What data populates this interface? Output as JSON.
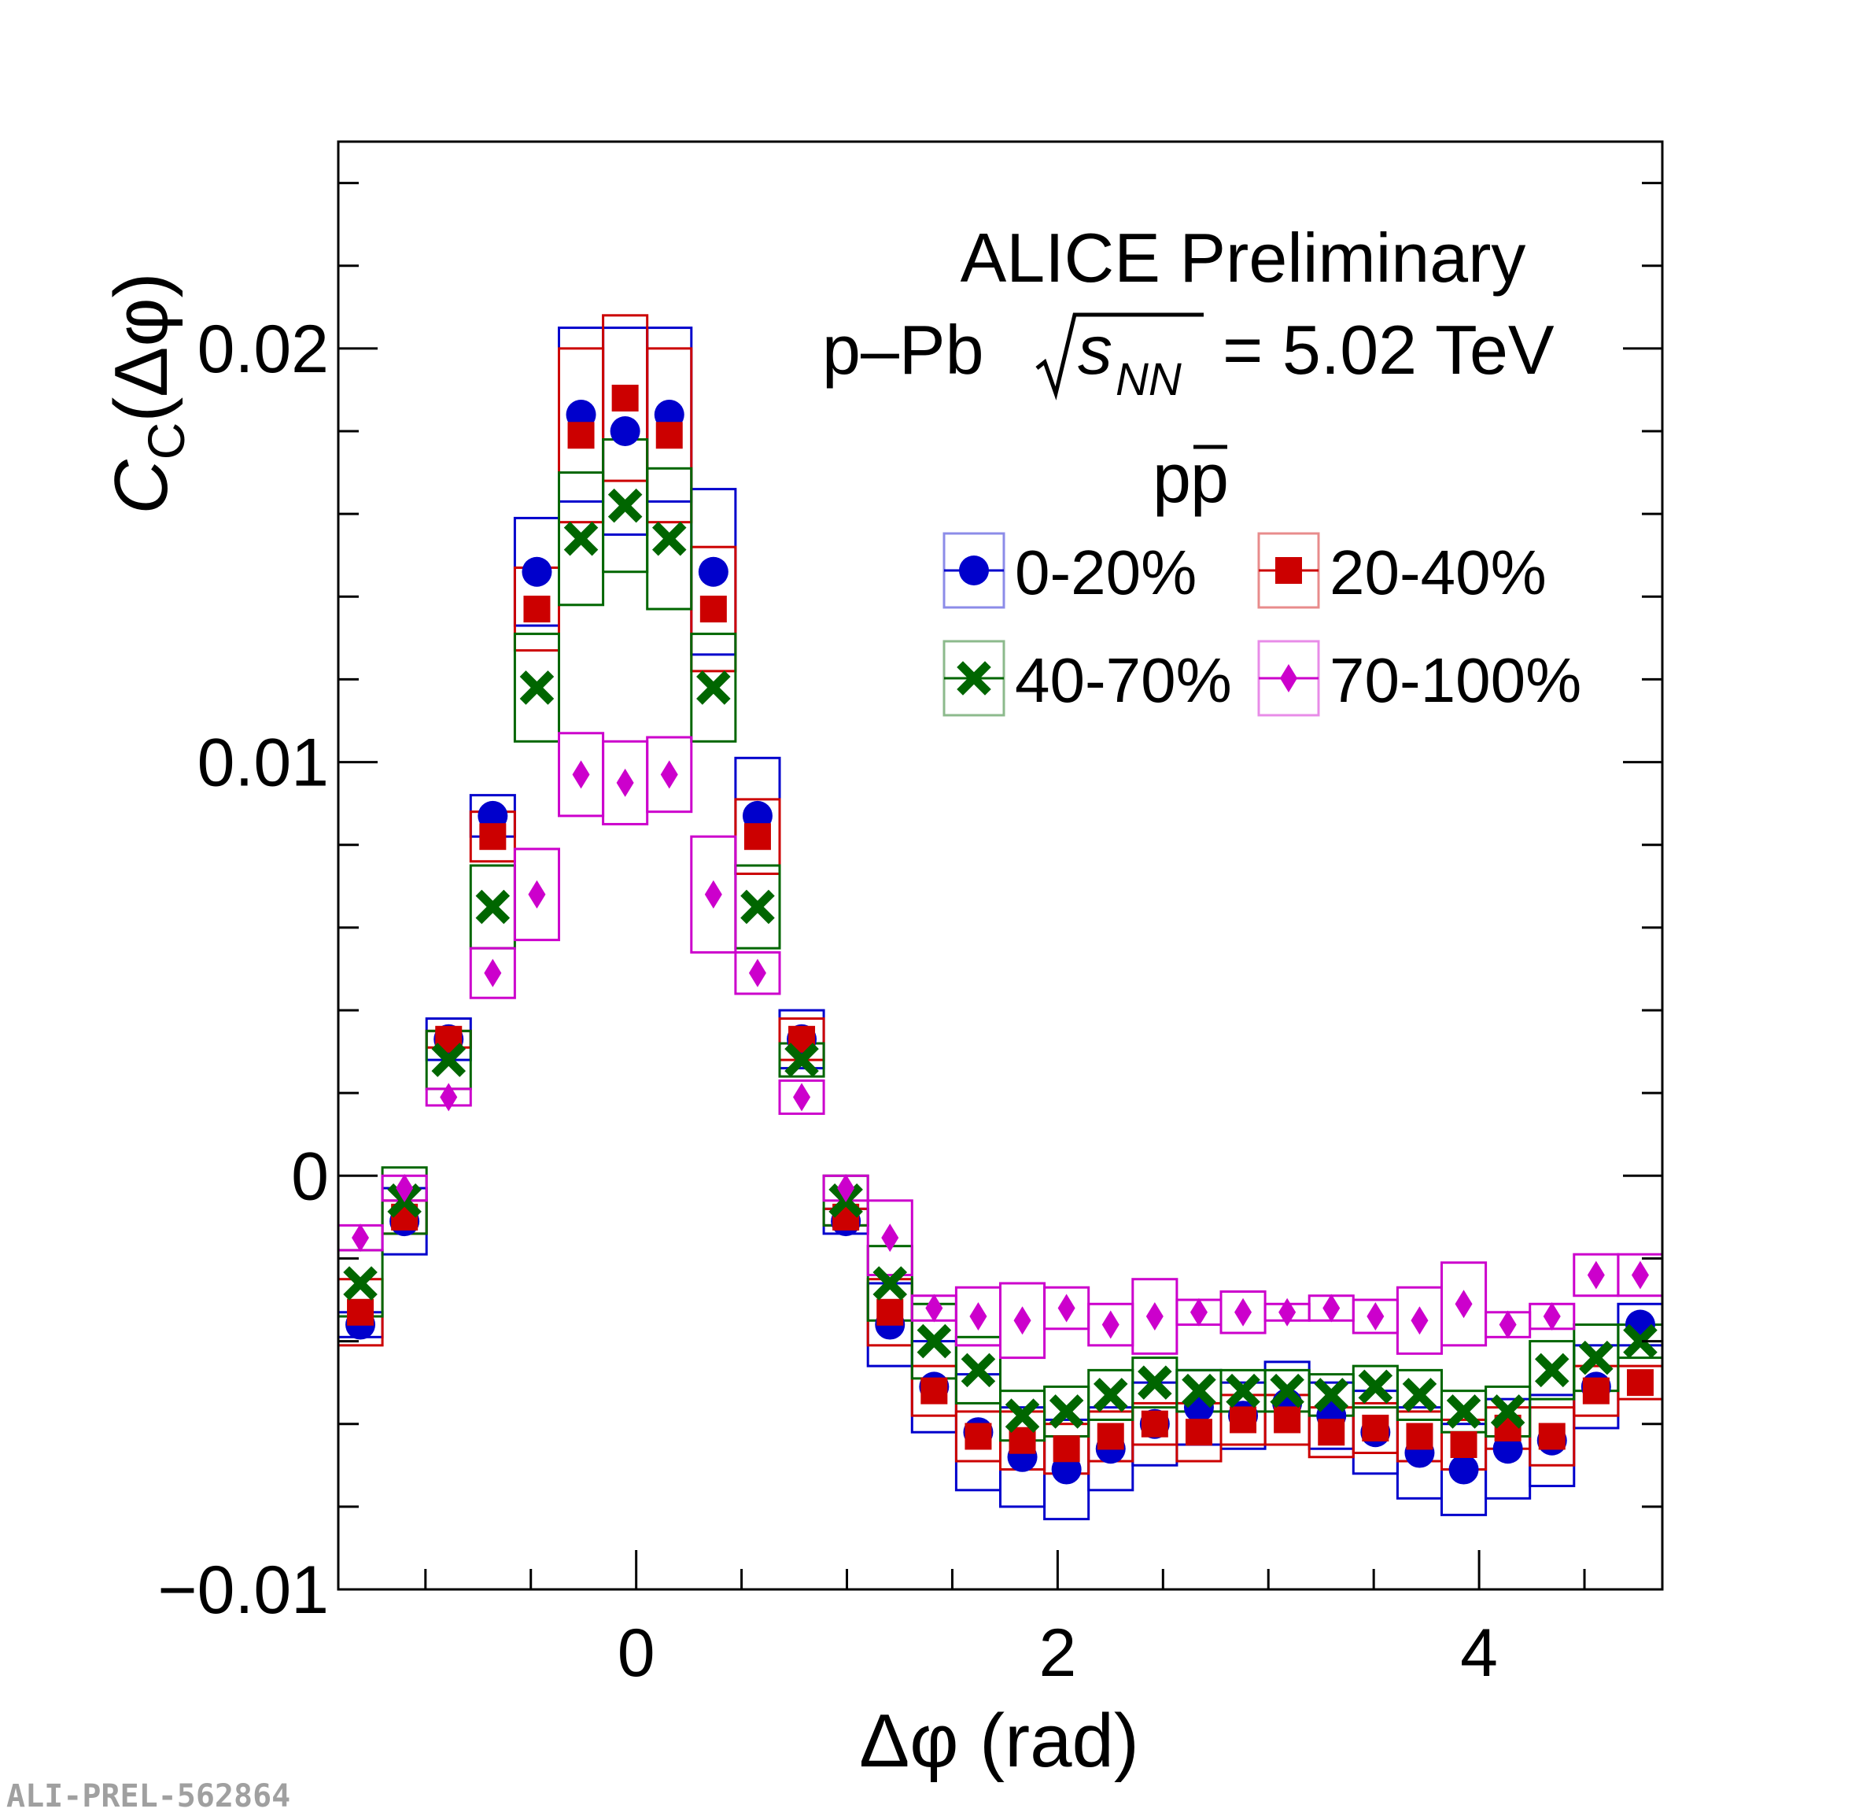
{
  "chart_data": {
    "type": "scatter",
    "xlabel": "Δφ (rad)",
    "ylabel_main": "C",
    "ylabel_sub": "C",
    "ylabel_tail": "(Δφ)",
    "xlim": [
      -1.4137,
      4.8695
    ],
    "ylim": [
      -0.01,
      0.025
    ],
    "x_ticks": [
      0,
      2,
      4
    ],
    "x_tick_labels": [
      "0",
      "2",
      "4"
    ],
    "y_ticks": [
      -0.01,
      0,
      0.01,
      0.02
    ],
    "y_tick_labels": [
      "−0.01",
      "0",
      "0.01",
      "0.02"
    ],
    "x_minor_step": 0.5,
    "y_minor_step": 0.002,
    "grid": false,
    "legend_position": "top-right",
    "annotations": {
      "experiment": "ALICE Preliminary",
      "system_prefix": "p–Pb",
      "energy_var": "s",
      "energy_sub": "NN",
      "energy_value": "= 5.02 TeV",
      "pair_p": "p",
      "pair_pbar": "p",
      "watermark": "ALI-PREL-562864"
    },
    "bin_width": 0.2094,
    "x": [
      -1.309,
      -1.0996,
      -0.8901,
      -0.6807,
      -0.4712,
      -0.2618,
      -0.0524,
      0.1571,
      0.3665,
      0.576,
      0.7854,
      0.9948,
      1.2043,
      1.4137,
      1.6232,
      1.8326,
      2.042,
      2.2515,
      2.4609,
      2.6704,
      2.8798,
      3.0892,
      3.2987,
      3.5081,
      3.7176,
      3.927,
      4.1364,
      4.3459,
      4.5553,
      4.7648
    ],
    "series": [
      {
        "name": "0-20%",
        "color": "#0000cc",
        "marker": "circle",
        "values": [
          -0.0036,
          -0.0011,
          0.0033,
          0.0087,
          0.0146,
          0.0184,
          0.018,
          0.0184,
          0.0146,
          0.0087,
          0.0033,
          -0.0011,
          -0.0036,
          -0.0051,
          -0.0062,
          -0.0068,
          -0.0071,
          -0.0066,
          -0.006,
          -0.0056,
          -0.0058,
          -0.0055,
          -0.0058,
          -0.0062,
          -0.0067,
          -0.0071,
          -0.0066,
          -0.0064,
          -0.0051,
          -0.0036
        ],
        "syst": [
          0.0003,
          0.0008,
          0.0005,
          0.0005,
          0.0013,
          0.0021,
          0.0025,
          0.0021,
          0.002,
          0.0014,
          0.0007,
          0.0003,
          0.001,
          0.0011,
          0.0014,
          0.0012,
          0.0012,
          0.001,
          0.001,
          0.0009,
          0.0008,
          0.001,
          0.0008,
          0.001,
          0.0011,
          0.0011,
          0.0012,
          0.0011,
          0.001,
          0.0005
        ]
      },
      {
        "name": "20-40%",
        "color": "#cc0000",
        "marker": "square",
        "values": [
          -0.0033,
          -0.001,
          0.0033,
          0.0082,
          0.0137,
          0.0179,
          0.0188,
          0.0179,
          0.0137,
          0.0082,
          0.0033,
          -0.001,
          -0.0033,
          -0.0052,
          -0.0063,
          -0.0064,
          -0.0066,
          -0.0063,
          -0.006,
          -0.0062,
          -0.0059,
          -0.0059,
          -0.0062,
          -0.0061,
          -0.0063,
          -0.0065,
          -0.0061,
          -0.0063,
          -0.0052,
          -0.005
        ],
        "syst": [
          0.0008,
          0.0004,
          0.0002,
          0.0006,
          0.001,
          0.0021,
          0.002,
          0.0021,
          0.0015,
          0.0009,
          0.0005,
          0.0002,
          0.0008,
          0.0006,
          0.0006,
          0.0007,
          0.0006,
          0.0006,
          0.0005,
          0.0007,
          0.0006,
          0.0006,
          0.0006,
          0.0006,
          0.0006,
          0.0006,
          0.0005,
          0.0007,
          0.0006,
          0.0004
        ]
      },
      {
        "name": "40-70%",
        "color": "#006600",
        "marker": "cross",
        "values": [
          -0.0026,
          -0.0006,
          0.0028,
          0.0065,
          0.0118,
          0.0154,
          0.0162,
          0.0154,
          0.0118,
          0.0065,
          0.0028,
          -0.0006,
          -0.0026,
          -0.004,
          -0.0047,
          -0.0058,
          -0.0057,
          -0.0053,
          -0.005,
          -0.0052,
          -0.0052,
          -0.0052,
          -0.0053,
          -0.0051,
          -0.0053,
          -0.0057,
          -0.0057,
          -0.0047,
          -0.0044,
          -0.004
        ],
        "syst": [
          0.0008,
          0.0008,
          0.0007,
          0.001,
          0.0013,
          0.0016,
          0.0016,
          0.0017,
          0.0013,
          0.001,
          0.0004,
          0.0006,
          0.0009,
          0.0009,
          0.0008,
          0.0006,
          0.0006,
          0.0006,
          0.0006,
          0.0005,
          0.0005,
          0.0005,
          0.0005,
          0.0005,
          0.0006,
          0.0005,
          0.0006,
          0.0007,
          0.0008,
          0.0004
        ]
      },
      {
        "name": "70-100%",
        "color": "#cc00cc",
        "marker": "diamond",
        "values": [
          -0.0015,
          -0.0003,
          0.0019,
          0.0049,
          0.0068,
          0.0097,
          0.0095,
          0.0097,
          0.0068,
          0.0049,
          0.0019,
          -0.0003,
          -0.0015,
          -0.0032,
          -0.0034,
          -0.0035,
          -0.0032,
          -0.0036,
          -0.0034,
          -0.0033,
          -0.0033,
          -0.0033,
          -0.0032,
          -0.0034,
          -0.0035,
          -0.0031,
          -0.0036,
          -0.0034,
          -0.0024,
          -0.0024
        ],
        "syst": [
          0.0003,
          0.0003,
          0.0002,
          0.0006,
          0.0011,
          0.001,
          0.001,
          0.0009,
          0.0014,
          0.0005,
          0.0004,
          0.0003,
          0.0009,
          0.0003,
          0.0007,
          0.0009,
          0.0005,
          0.0005,
          0.0009,
          0.0003,
          0.0005,
          0.0002,
          0.0003,
          0.0004,
          0.0008,
          0.001,
          0.0003,
          0.0003,
          0.0005,
          0.0005
        ]
      }
    ]
  }
}
